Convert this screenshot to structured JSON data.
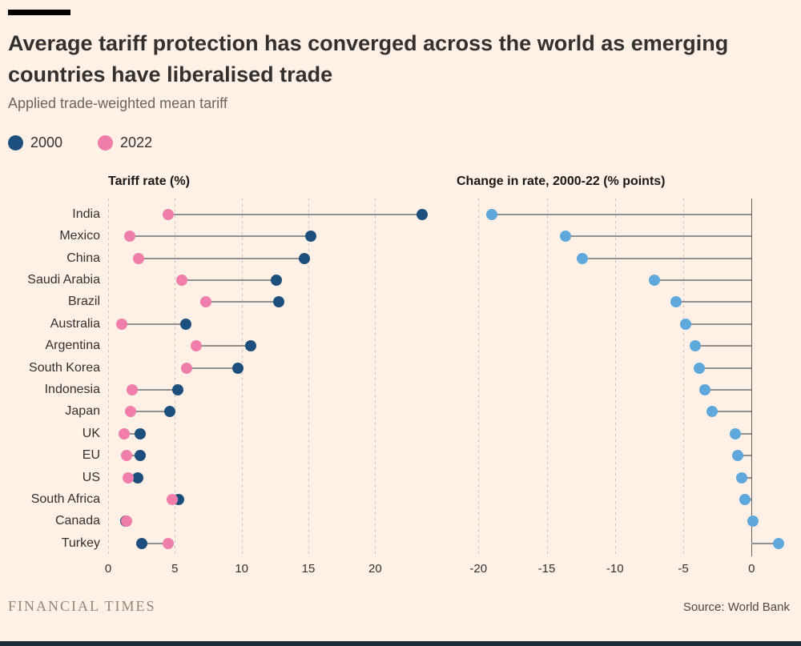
{
  "header": {
    "title": "Average tariff protection has converged across the world as emerging countries have liberalised trade",
    "subtitle": "Applied trade-weighted mean tariff",
    "legend": [
      {
        "label": "2000",
        "color": "#1D4F7C"
      },
      {
        "label": "2022",
        "color": "#F07EAB"
      }
    ]
  },
  "colors": {
    "background": "#FFF1E5",
    "blue_2000": "#1D4F7C",
    "pink_2022": "#F07EAB",
    "light_blue_change": "#5FA8DC",
    "stem": "#8F8F8F",
    "gridline": "#CCC1B4",
    "baseline": "#66605C",
    "bottom_bar": "#1C2B3A"
  },
  "chart_data": [
    {
      "type": "dumbbell",
      "title": "Tariff rate (%)",
      "categories": [
        "India",
        "Mexico",
        "China",
        "Saudi Arabia",
        "Brazil",
        "Australia",
        "Argentina",
        "South Korea",
        "Indonesia",
        "Japan",
        "UK",
        "EU",
        "US",
        "South Africa",
        "Canada",
        "Turkey"
      ],
      "series": [
        {
          "name": "2000",
          "color": "#1D4F7C",
          "values": [
            23.5,
            15.2,
            14.7,
            12.6,
            12.8,
            5.8,
            10.7,
            9.7,
            5.2,
            4.6,
            2.4,
            2.4,
            2.2,
            5.3,
            1.3,
            2.5
          ]
        },
        {
          "name": "2022",
          "color": "#F07EAB",
          "values": [
            4.5,
            1.6,
            2.3,
            5.5,
            7.3,
            1.0,
            6.6,
            5.9,
            1.8,
            1.7,
            1.2,
            1.4,
            1.5,
            4.8,
            1.4,
            4.5
          ]
        }
      ],
      "xticks": [
        0,
        5,
        10,
        15,
        20
      ],
      "xlim": [
        0,
        24
      ],
      "grid": "dashed-vertical",
      "legend_position": "top-left"
    },
    {
      "type": "lollipop",
      "title": "Change in rate, 2000-22 (% points)",
      "categories": [
        "India",
        "Mexico",
        "China",
        "Saudi Arabia",
        "Brazil",
        "Australia",
        "Argentina",
        "South Korea",
        "Indonesia",
        "Japan",
        "UK",
        "EU",
        "US",
        "South Africa",
        "Canada",
        "Turkey"
      ],
      "values": [
        -19.0,
        -13.6,
        -12.4,
        -7.1,
        -5.5,
        -4.8,
        -4.1,
        -3.8,
        -3.4,
        -2.9,
        -1.2,
        -1.0,
        -0.7,
        -0.5,
        0.1,
        2.0
      ],
      "color": "#5FA8DC",
      "xticks": [
        -20,
        -15,
        -10,
        -5,
        0
      ],
      "xlim": [
        -21.6,
        2.8
      ],
      "baseline": 0,
      "grid": "dashed-vertical"
    }
  ],
  "footer": {
    "brand": "FINANCIAL TIMES",
    "source": "Source: World Bank"
  }
}
